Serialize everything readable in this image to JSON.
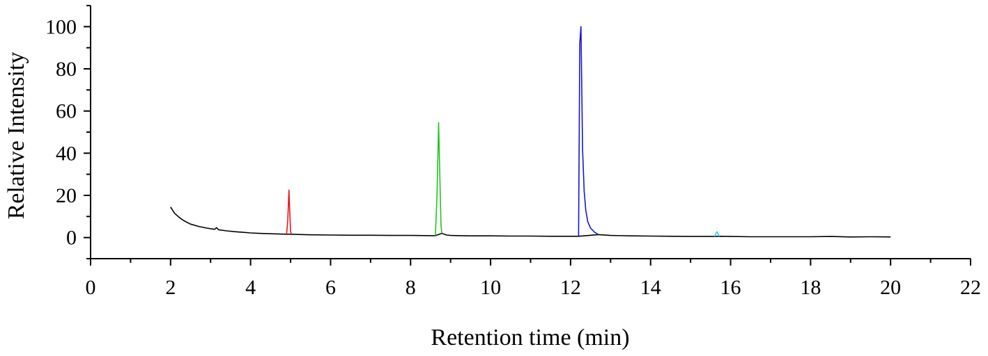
{
  "chart_data": {
    "type": "line",
    "xlabel": "Retention time (min)",
    "ylabel": "Relative Intensity",
    "xlim": [
      0,
      22
    ],
    "ylim": [
      -10,
      110
    ],
    "xticks": [
      0,
      2,
      4,
      6,
      8,
      10,
      12,
      14,
      16,
      18,
      20,
      22
    ],
    "yticks": [
      0,
      20,
      40,
      60,
      80,
      100
    ],
    "x_minor_step": 1,
    "y_minor_step": 10,
    "grid": false,
    "legend": "none",
    "series": [
      {
        "color": "#000000",
        "x": [
          2.0,
          2.1,
          2.2,
          2.3,
          2.4,
          2.5,
          2.7,
          2.9,
          3.1,
          3.15,
          3.2,
          3.4,
          3.6,
          3.8,
          4.0,
          4.2,
          4.5,
          4.9,
          4.98,
          5.1,
          5.5,
          6.0,
          6.5,
          7.0,
          7.5,
          8.0,
          8.5,
          8.62,
          8.78,
          8.9,
          9.0,
          9.2,
          9.5,
          10.0,
          10.5,
          11.0,
          11.5,
          12.0,
          12.2,
          12.7,
          13.0,
          13.5,
          14.0,
          14.5,
          15.0,
          15.5,
          15.6,
          15.72,
          16.0,
          16.5,
          17.0,
          17.5,
          18.0,
          18.5,
          19.0,
          19.5,
          20.0
        ],
        "y": [
          14.5,
          11.5,
          9.8,
          8.4,
          7.3,
          6.4,
          5.3,
          4.5,
          3.9,
          4.7,
          3.7,
          3.2,
          2.8,
          2.5,
          2.2,
          2.0,
          1.8,
          1.6,
          1.6,
          1.5,
          1.3,
          1.2,
          1.1,
          1.1,
          1.0,
          1.0,
          0.9,
          0.9,
          2.0,
          1.2,
          1.0,
          0.9,
          0.8,
          0.8,
          0.7,
          0.7,
          0.6,
          0.6,
          0.6,
          1.4,
          1.0,
          0.8,
          0.7,
          0.6,
          0.5,
          0.5,
          0.5,
          0.6,
          0.5,
          0.4,
          0.4,
          0.4,
          0.4,
          0.5,
          0.3,
          0.4,
          0.3
        ]
      },
      {
        "color": "#e8141b",
        "x": [
          4.9,
          4.93,
          4.96,
          4.98,
          5.0,
          5.02
        ],
        "y": [
          1.6,
          8.0,
          22.5,
          12.0,
          3.0,
          1.6
        ]
      },
      {
        "color": "#22c422",
        "x": [
          8.62,
          8.66,
          8.7,
          8.73,
          8.76,
          8.78
        ],
        "y": [
          0.9,
          20.0,
          54.5,
          30.0,
          6.0,
          2.0
        ]
      },
      {
        "color": "#1515d6",
        "x": [
          12.2,
          12.23,
          12.26,
          12.28,
          12.3,
          12.34,
          12.38,
          12.43,
          12.5,
          12.6,
          12.7
        ],
        "y": [
          0.6,
          92.0,
          100.0,
          70.0,
          42.0,
          22.0,
          13.0,
          7.5,
          4.5,
          2.5,
          1.4
        ]
      },
      {
        "color": "#23d8e6",
        "x": [
          15.6,
          15.63,
          15.66,
          15.69,
          15.72
        ],
        "y": [
          0.5,
          1.8,
          2.8,
          1.5,
          0.6
        ]
      }
    ]
  }
}
